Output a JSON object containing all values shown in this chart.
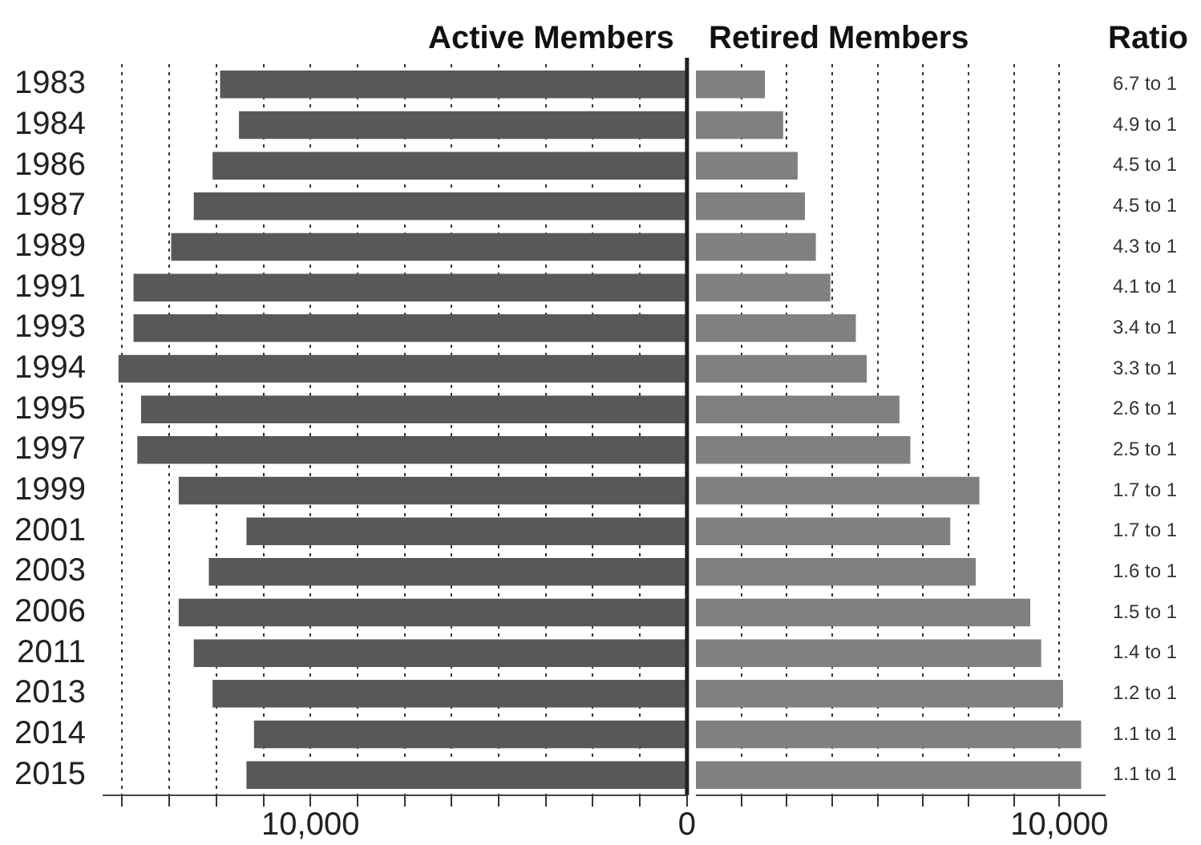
{
  "chart_data": [
    {
      "type": "bar",
      "orientation": "horizontal",
      "categories": [
        "1983",
        "1984",
        "1986",
        "1987",
        "1989",
        "1991",
        "1993",
        "1994",
        "1995",
        "1997",
        "1999",
        "2001",
        "2003",
        "2006",
        "2011",
        "2013",
        "2014",
        "2015"
      ],
      "series": [
        {
          "name": "Active Members",
          "color": "#58585a",
          "values": [
            12400,
            11900,
            12600,
            13100,
            13700,
            14700,
            14700,
            15100,
            14500,
            14600,
            13500,
            11700,
            12700,
            13500,
            13100,
            12600,
            11500,
            11700
          ]
        }
      ],
      "xlim": [
        15500,
        0
      ],
      "xticks": [
        {
          "value": 15000,
          "label": null
        },
        {
          "value": 13750,
          "label": null
        },
        {
          "value": 12500,
          "label": null
        },
        {
          "value": 11250,
          "label": null
        },
        {
          "value": 10000,
          "label": "10,000"
        },
        {
          "value": 8750,
          "label": null
        },
        {
          "value": 7500,
          "label": null
        },
        {
          "value": 6250,
          "label": null
        },
        {
          "value": 5000,
          "label": null
        },
        {
          "value": 3750,
          "label": null
        },
        {
          "value": 2500,
          "label": null
        },
        {
          "value": 1250,
          "label": null
        },
        0
      ],
      "grid": "x",
      "legend": false,
      "ref_lines": [
        {
          "axis": "x",
          "value": 0,
          "color": "#222222"
        }
      ]
    },
    {
      "type": "bar",
      "orientation": "horizontal",
      "categories": [
        "1983",
        "1984",
        "1986",
        "1987",
        "1989",
        "1991",
        "1993",
        "1994",
        "1995",
        "1997",
        "1999",
        "2001",
        "2003",
        "2006",
        "2011",
        "2013",
        "2014",
        "2015"
      ],
      "series": [
        {
          "name": "Retired Members",
          "color": "#808083",
          "values": [
            1900,
            2400,
            2800,
            3000,
            3300,
            3700,
            4400,
            4700,
            5600,
            5900,
            7800,
            7000,
            7700,
            9200,
            9500,
            10100,
            10600,
            10600
          ]
        }
      ],
      "xlim": [
        0,
        11250
      ],
      "xticks": [
        {
          "value": 1250,
          "label": null
        },
        {
          "value": 2500,
          "label": null
        },
        {
          "value": 3750,
          "label": null
        },
        {
          "value": 5000,
          "label": null
        },
        {
          "value": 6250,
          "label": null
        },
        {
          "value": 7500,
          "label": null
        },
        {
          "value": 8750,
          "label": null
        },
        {
          "value": 10000,
          "label": "10,000"
        }
      ],
      "grid": "x",
      "legend": false,
      "tick_labels": "x",
      "annotations": [
        "Ratio",
        "6.7 to 1",
        "4.9 to 1",
        "4.5 to 1",
        "4.5 to 1",
        "4.3 to 1",
        "4.1 to 1",
        "3.4 to 1",
        "3.3 to 1",
        "2.6 to 1",
        "2.5 to 1",
        "1.7 to 1",
        "1.7 to 1",
        "1.6 to 1",
        "1.5 to 1",
        "1.4 to 1",
        "1.2 to 1",
        "1.1 to 1",
        "1.1 to 1"
      ]
    }
  ]
}
